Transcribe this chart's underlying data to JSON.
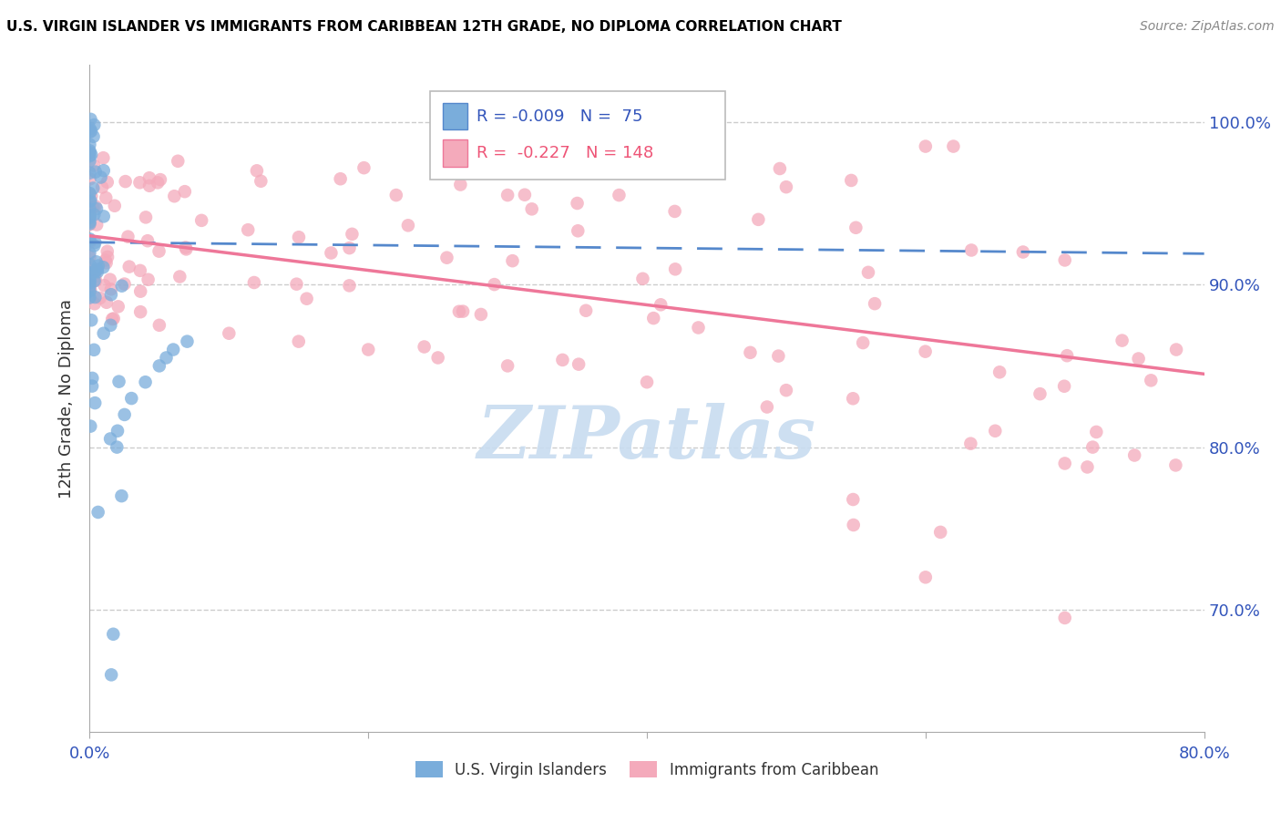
{
  "title": "U.S. VIRGIN ISLANDER VS IMMIGRANTS FROM CARIBBEAN 12TH GRADE, NO DIPLOMA CORRELATION CHART",
  "source": "Source: ZipAtlas.com",
  "ylabel": "12th Grade, No Diploma",
  "right_yticks": [
    "100.0%",
    "90.0%",
    "80.0%",
    "70.0%"
  ],
  "right_ytick_vals": [
    1.0,
    0.9,
    0.8,
    0.7
  ],
  "legend_blue_r": "-0.009",
  "legend_blue_n": "75",
  "legend_pink_r": "-0.227",
  "legend_pink_n": "148",
  "blue_color": "#7AADDB",
  "pink_color": "#F4AABB",
  "blue_line_color": "#5588CC",
  "pink_line_color": "#EE7799",
  "watermark_color": "#C8DCF0",
  "xmin": 0.0,
  "xmax": 0.8,
  "ymin": 0.625,
  "ymax": 1.035,
  "blue_trendline": [
    0.0,
    0.8,
    0.926,
    0.919
  ],
  "pink_trendline": [
    0.0,
    0.8,
    0.93,
    0.845
  ]
}
